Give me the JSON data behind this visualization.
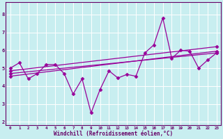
{
  "xlabel": "Windchill (Refroidissement éolien,°C)",
  "bg_color": "#c8eef0",
  "line_color": "#990099",
  "grid_color": "#aadddd",
  "xlim": [
    -0.5,
    23.5
  ],
  "ylim": [
    1.8,
    8.7
  ],
  "yticks": [
    2,
    3,
    4,
    5,
    6,
    7,
    8
  ],
  "xticks": [
    0,
    1,
    2,
    3,
    4,
    5,
    6,
    7,
    8,
    9,
    10,
    11,
    12,
    13,
    14,
    15,
    16,
    17,
    18,
    19,
    20,
    21,
    22,
    23
  ],
  "line1_x": [
    0,
    1,
    2,
    3,
    4,
    5,
    6,
    7,
    8,
    9,
    10,
    11,
    12,
    13,
    14,
    15,
    16,
    17,
    18,
    19,
    20,
    21,
    22,
    23
  ],
  "line1_y": [
    5.0,
    5.3,
    4.4,
    4.7,
    5.2,
    5.2,
    4.7,
    3.55,
    4.4,
    2.5,
    3.8,
    4.85,
    4.45,
    4.65,
    4.55,
    5.85,
    6.3,
    7.8,
    5.55,
    6.0,
    5.95,
    5.0,
    5.45,
    5.85
  ],
  "line2_x": [
    0,
    23
  ],
  "line2_y": [
    4.85,
    6.2
  ],
  "line3_x": [
    0,
    23
  ],
  "line3_y": [
    4.7,
    5.85
  ],
  "line4_x": [
    0,
    23
  ],
  "line4_y": [
    4.55,
    5.95
  ],
  "marker": "D",
  "markersize": 2.5,
  "linewidth": 0.9
}
